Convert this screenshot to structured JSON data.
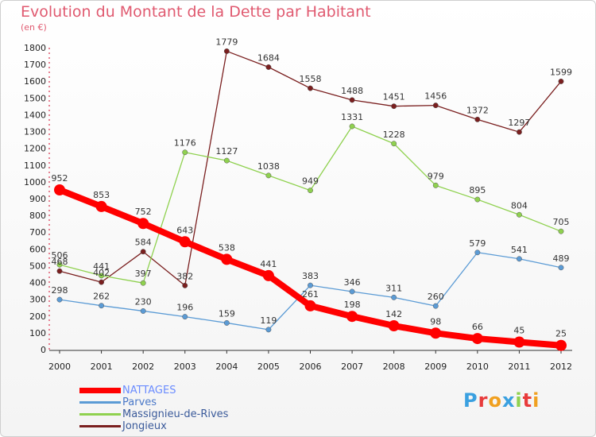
{
  "title": "Evolution du Montant de la Dette par Habitant",
  "unit": "(en €)",
  "logo": "Proxiti",
  "chart_data": {
    "type": "line",
    "title": "Evolution du Montant de la Dette par Habitant",
    "ylabel": "(en €)",
    "xlabel": "",
    "ylim": [
      0,
      1800
    ],
    "yticks": [
      0,
      100,
      200,
      300,
      400,
      500,
      600,
      700,
      800,
      900,
      1000,
      1100,
      1200,
      1300,
      1400,
      1500,
      1600,
      1700,
      1800
    ],
    "x": [
      "2000",
      "2001",
      "2002",
      "2003",
      "2004",
      "2005",
      "2006",
      "2007",
      "2008",
      "2009",
      "2010",
      "2011",
      "2012"
    ],
    "grid": false,
    "legend_position": "bottom-left",
    "series": [
      {
        "name": "NATTAGES",
        "color": "#ff0000",
        "values": [
          952,
          853,
          752,
          643,
          538,
          441,
          261,
          198,
          142,
          98,
          66,
          45,
          25
        ]
      },
      {
        "name": "Parves",
        "color": "#5b9bd5",
        "values": [
          298,
          262,
          230,
          196,
          159,
          119,
          383,
          346,
          311,
          260,
          579,
          541,
          489
        ]
      },
      {
        "name": "Massignieu-de-Rives",
        "color": "#8fd14f",
        "values": [
          506,
          441,
          397,
          1176,
          1127,
          1038,
          949,
          1331,
          1228,
          979,
          895,
          804,
          705
        ]
      },
      {
        "name": "Jongieux",
        "color": "#7a1f1f",
        "values": [
          468,
          402,
          584,
          382,
          1779,
          1684,
          1558,
          1488,
          1451,
          1456,
          1372,
          1297,
          1599
        ]
      }
    ]
  }
}
